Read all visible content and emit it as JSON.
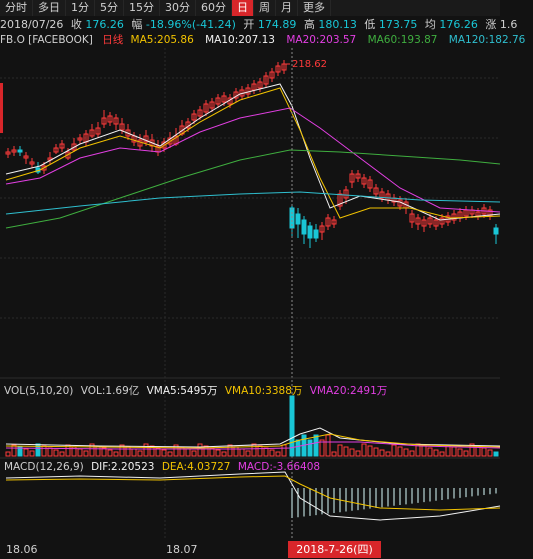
{
  "tabs": [
    "分时",
    "多日",
    "1分",
    "5分",
    "15分",
    "30分",
    "60分",
    "日",
    "周",
    "月",
    "更多"
  ],
  "active_tab": "日",
  "info": {
    "date": "2018/07/26",
    "shou_label": "收",
    "shou": "176.26",
    "fu_label": "幅",
    "fu": "-18.96%(-41.24)",
    "kai_label": "开",
    "kai": "174.89",
    "gao_label": "高",
    "gao": "180.13",
    "di_label": "低",
    "di": "173.75",
    "jun_label": "均",
    "jun": "176.26",
    "extra": "涨 1.6"
  },
  "indicators": {
    "symbol": "FB.O [FACEBOOK]",
    "period": "日线",
    "ma5": "MA5:205.86",
    "ma10": "MA10:207.13",
    "ma20": "MA20:203.57",
    "ma60": "MA60:193.87",
    "ma120": "MA120:182.76"
  },
  "peak_label": "218.62",
  "volume_pane": {
    "title": "VOL(5,10,20)",
    "vol": "VOL:1.69亿",
    "vma5": "VMA5:5495万",
    "vma10": "VMA10:3388万",
    "vma20": "VMA20:2491万"
  },
  "macd_pane": {
    "title": "MACD(12,26,9)",
    "dif": "DIF:2.20523",
    "dea": "DEA:4.03727",
    "macd": "MACD:-3.66408"
  },
  "xaxis": {
    "labels": [
      "18.06",
      "18.07"
    ],
    "crosshair_date": "2018-7-26(四)"
  },
  "colors": {
    "up": "#ff3b3b",
    "down": "#19c6d6",
    "ma5": "#f2f2f2",
    "ma10": "#f2c300",
    "ma20": "#e23fe2",
    "ma60": "#3fae3f",
    "ma120": "#2fbfcf",
    "accent": "#d8262a"
  }
}
